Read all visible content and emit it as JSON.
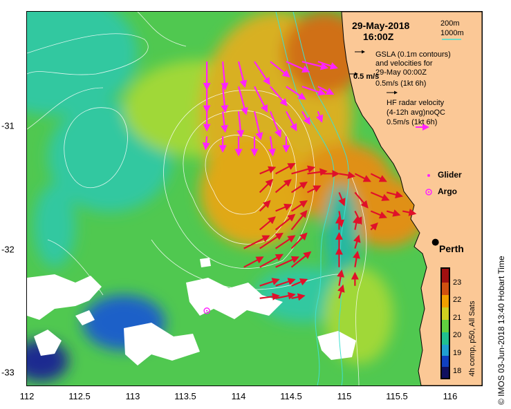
{
  "title": {
    "date": "29-May-2018",
    "time": "16:00Z"
  },
  "bathymetry": {
    "label_200": "200m",
    "label_1000": "1000m",
    "color": "#40e0d0"
  },
  "legend": {
    "gsla_line1": "GSLA (0.1m contours)",
    "gsla_line2": "and velocities for",
    "gsla_line3": "29-May 00:00Z",
    "gsla_scale": "0.5m/s (1kt 6h)",
    "arrow_scale_label": "0.5 m/s",
    "hf_line1": "HF radar velocity",
    "hf_line2": "(4-12h avg)noQC",
    "hf_scale": "0.5m/s (1kt 6h)",
    "glider": "Glider",
    "argo": "Argo"
  },
  "place": {
    "city": "Perth"
  },
  "colorbar": {
    "title": "4h comp, p50, All Sats",
    "ticks": [
      "18",
      "19",
      "20",
      "21",
      "22",
      "23"
    ],
    "stops": [
      "#101060",
      "#1040c0",
      "#20a0d0",
      "#20c090",
      "#60d040",
      "#d0d020",
      "#f0a000",
      "#d05010",
      "#a01010"
    ]
  },
  "credit": "© IMOS 03-Jun-2018 13:40 Hobart Time",
  "axes": {
    "x_ticks": [
      "112",
      "112.5",
      "113",
      "113.5",
      "114",
      "114.5",
      "115",
      "115.5",
      "116"
    ],
    "y_ticks": [
      "-31",
      "-32",
      "-33"
    ]
  },
  "colors": {
    "land": "#fbc896",
    "cloud": "#ffffff",
    "hf_arrow": "#e0102a",
    "sat_arrow": "#ff22ff"
  },
  "map_data": {
    "lon_range": [
      112,
      116.3
    ],
    "lat_range": [
      -33.1,
      -30.1
    ],
    "perth": {
      "lon": 115.86,
      "lat": -31.95
    },
    "argo": {
      "lon": 113.7,
      "lat": -32.5
    },
    "sat_vectors": [
      [
        113.7,
        -30.5,
        0.0,
        -0.22
      ],
      [
        113.85,
        -30.5,
        0.02,
        -0.22
      ],
      [
        114.0,
        -30.5,
        0.05,
        -0.2
      ],
      [
        114.15,
        -30.5,
        0.12,
        -0.18
      ],
      [
        114.3,
        -30.5,
        0.15,
        -0.12
      ],
      [
        114.45,
        -30.5,
        0.18,
        -0.08
      ],
      [
        114.6,
        -30.5,
        0.2,
        -0.05
      ],
      [
        114.75,
        -30.5,
        0.15,
        -0.05
      ],
      [
        113.7,
        -30.7,
        0.0,
        -0.2
      ],
      [
        113.85,
        -30.7,
        0.02,
        -0.2
      ],
      [
        114.0,
        -30.7,
        0.06,
        -0.22
      ],
      [
        114.15,
        -30.7,
        0.1,
        -0.2
      ],
      [
        114.3,
        -30.7,
        0.13,
        -0.15
      ],
      [
        114.45,
        -30.7,
        0.15,
        -0.1
      ],
      [
        114.6,
        -30.7,
        0.18,
        -0.06
      ],
      [
        114.75,
        -30.7,
        0.12,
        -0.06
      ],
      [
        113.7,
        -30.9,
        0.0,
        -0.15
      ],
      [
        113.85,
        -30.9,
        0.02,
        -0.16
      ],
      [
        114.0,
        -30.9,
        0.02,
        -0.2
      ],
      [
        114.15,
        -30.9,
        0.05,
        -0.22
      ],
      [
        114.3,
        -30.9,
        0.08,
        -0.2
      ],
      [
        114.45,
        -30.9,
        0.08,
        -0.15
      ],
      [
        114.6,
        -30.9,
        0.06,
        -0.1
      ],
      [
        114.75,
        -30.9,
        0.03,
        -0.08
      ],
      [
        113.7,
        -31.1,
        -0.01,
        -0.1
      ],
      [
        113.85,
        -31.1,
        0.0,
        -0.12
      ],
      [
        114.0,
        -31.1,
        0.0,
        -0.15
      ],
      [
        114.15,
        -31.1,
        0.0,
        -0.15
      ],
      [
        114.3,
        -31.1,
        0.02,
        -0.15
      ],
      [
        114.45,
        -31.1,
        0.0,
        -0.12
      ]
    ],
    "hf_vectors": [
      [
        114.2,
        -31.4,
        0.12,
        0.05
      ],
      [
        114.35,
        -31.4,
        0.15,
        0.08
      ],
      [
        114.5,
        -31.4,
        0.18,
        0.05
      ],
      [
        114.65,
        -31.4,
        0.15,
        0.02
      ],
      [
        114.8,
        -31.4,
        0.12,
        0.0
      ],
      [
        114.95,
        -31.4,
        0.12,
        -0.02
      ],
      [
        115.1,
        -31.4,
        0.12,
        -0.06
      ],
      [
        115.25,
        -31.4,
        0.12,
        -0.06
      ],
      [
        114.2,
        -31.55,
        0.1,
        0.1
      ],
      [
        114.35,
        -31.55,
        0.12,
        0.1
      ],
      [
        114.5,
        -31.55,
        0.12,
        0.08
      ],
      [
        114.65,
        -31.55,
        0.1,
        0.05
      ],
      [
        114.95,
        -31.55,
        0.04,
        -0.1
      ],
      [
        115.1,
        -31.55,
        0.1,
        -0.12
      ],
      [
        115.25,
        -31.55,
        0.14,
        -0.06
      ],
      [
        115.4,
        -31.55,
        0.12,
        -0.03
      ],
      [
        114.2,
        -31.7,
        0.08,
        0.08
      ],
      [
        114.35,
        -31.7,
        0.12,
        0.05
      ],
      [
        114.5,
        -31.7,
        0.12,
        0.08
      ],
      [
        114.95,
        -31.7,
        0.02,
        -0.12
      ],
      [
        115.1,
        -31.7,
        0.05,
        -0.1
      ],
      [
        115.25,
        -31.7,
        0.12,
        -0.05
      ],
      [
        115.4,
        -31.7,
        0.1,
        -0.03
      ],
      [
        115.55,
        -31.7,
        0.1,
        -0.02
      ],
      [
        114.2,
        -31.85,
        0.12,
        0.1
      ],
      [
        114.35,
        -31.85,
        0.15,
        0.12
      ],
      [
        114.5,
        -31.85,
        0.12,
        0.15
      ],
      [
        114.95,
        -31.85,
        0.0,
        0.1
      ],
      [
        115.1,
        -31.85,
        0.02,
        0.1
      ],
      [
        115.25,
        -31.85,
        0.05,
        0.05
      ],
      [
        114.05,
        -32.0,
        0.2,
        0.1
      ],
      [
        114.2,
        -32.0,
        0.18,
        0.12
      ],
      [
        114.35,
        -32.0,
        0.15,
        0.1
      ],
      [
        114.5,
        -32.0,
        0.12,
        0.12
      ],
      [
        114.95,
        -32.0,
        0.0,
        0.12
      ],
      [
        115.1,
        -32.0,
        0.03,
        0.1
      ],
      [
        114.05,
        -32.15,
        0.15,
        0.08
      ],
      [
        114.2,
        -32.15,
        0.18,
        0.1
      ],
      [
        114.35,
        -32.15,
        0.18,
        0.08
      ],
      [
        114.5,
        -32.15,
        0.15,
        0.12
      ],
      [
        114.95,
        -32.15,
        0.0,
        0.15
      ],
      [
        115.1,
        -32.15,
        0.02,
        0.12
      ],
      [
        114.2,
        -32.3,
        0.15,
        0.05
      ],
      [
        114.35,
        -32.3,
        0.15,
        0.05
      ],
      [
        114.5,
        -32.3,
        0.12,
        0.05
      ],
      [
        114.95,
        -32.3,
        0.02,
        0.12
      ],
      [
        115.1,
        -32.3,
        0.0,
        0.1
      ],
      [
        114.2,
        -32.4,
        0.15,
        0.02
      ],
      [
        114.35,
        -32.4,
        0.15,
        0.03
      ],
      [
        114.5,
        -32.4,
        0.1,
        0.02
      ],
      [
        114.95,
        -32.4,
        0.03,
        0.1
      ]
    ]
  }
}
